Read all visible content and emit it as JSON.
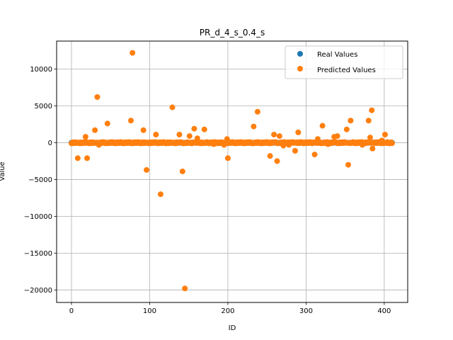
{
  "chart_data": {
    "type": "scatter",
    "title": "PR_d_4_s_0.4_s",
    "xlabel": "ID",
    "ylabel": "Value",
    "xlim": [
      -19,
      430
    ],
    "ylim": [
      -21700,
      13800
    ],
    "xticks": [
      0,
      100,
      200,
      300,
      400
    ],
    "yticks": [
      -20000,
      -15000,
      -10000,
      -5000,
      0,
      5000,
      10000
    ],
    "xtick_labels": [
      "0",
      "100",
      "200",
      "300",
      "400"
    ],
    "ytick_labels": [
      "−20000",
      "−15000",
      "−10000",
      "−5000",
      "0",
      "5000",
      "10000"
    ],
    "grid": true,
    "legend_position": "top-right",
    "n_points": 410,
    "series": [
      {
        "name": "Real Values",
        "color": "#1f77b4"
      },
      {
        "name": "Predicted Values",
        "color": "#ff7f0e",
        "outliers": [
          [
            8,
            -2100
          ],
          [
            18,
            800
          ],
          [
            20,
            -2100
          ],
          [
            30,
            1700
          ],
          [
            33,
            6200
          ],
          [
            35,
            -300
          ],
          [
            46,
            2600
          ],
          [
            76,
            3000
          ],
          [
            78,
            12200
          ],
          [
            92,
            1700
          ],
          [
            96,
            -3700
          ],
          [
            108,
            1100
          ],
          [
            114,
            -7000
          ],
          [
            129,
            4800
          ],
          [
            138,
            1100
          ],
          [
            142,
            -3900
          ],
          [
            145,
            -19800
          ],
          [
            151,
            900
          ],
          [
            157,
            1900
          ],
          [
            161,
            600
          ],
          [
            170,
            1800
          ],
          [
            182,
            -200
          ],
          [
            195,
            -300
          ],
          [
            199,
            500
          ],
          [
            200,
            -2100
          ],
          [
            233,
            2200
          ],
          [
            238,
            4200
          ],
          [
            254,
            -1800
          ],
          [
            259,
            1100
          ],
          [
            263,
            -2500
          ],
          [
            266,
            900
          ],
          [
            271,
            -400
          ],
          [
            278,
            -300
          ],
          [
            286,
            -1100
          ],
          [
            290,
            1400
          ],
          [
            311,
            -1600
          ],
          [
            315,
            500
          ],
          [
            321,
            2300
          ],
          [
            328,
            -200
          ],
          [
            336,
            800
          ],
          [
            340,
            900
          ],
          [
            352,
            1800
          ],
          [
            354,
            -3000
          ],
          [
            357,
            3000
          ],
          [
            372,
            -300
          ],
          [
            380,
            3000
          ],
          [
            382,
            700
          ],
          [
            384,
            4400
          ],
          [
            385,
            -800
          ],
          [
            397,
            300
          ],
          [
            401,
            1100
          ],
          [
            406,
            -100
          ]
        ]
      }
    ]
  }
}
